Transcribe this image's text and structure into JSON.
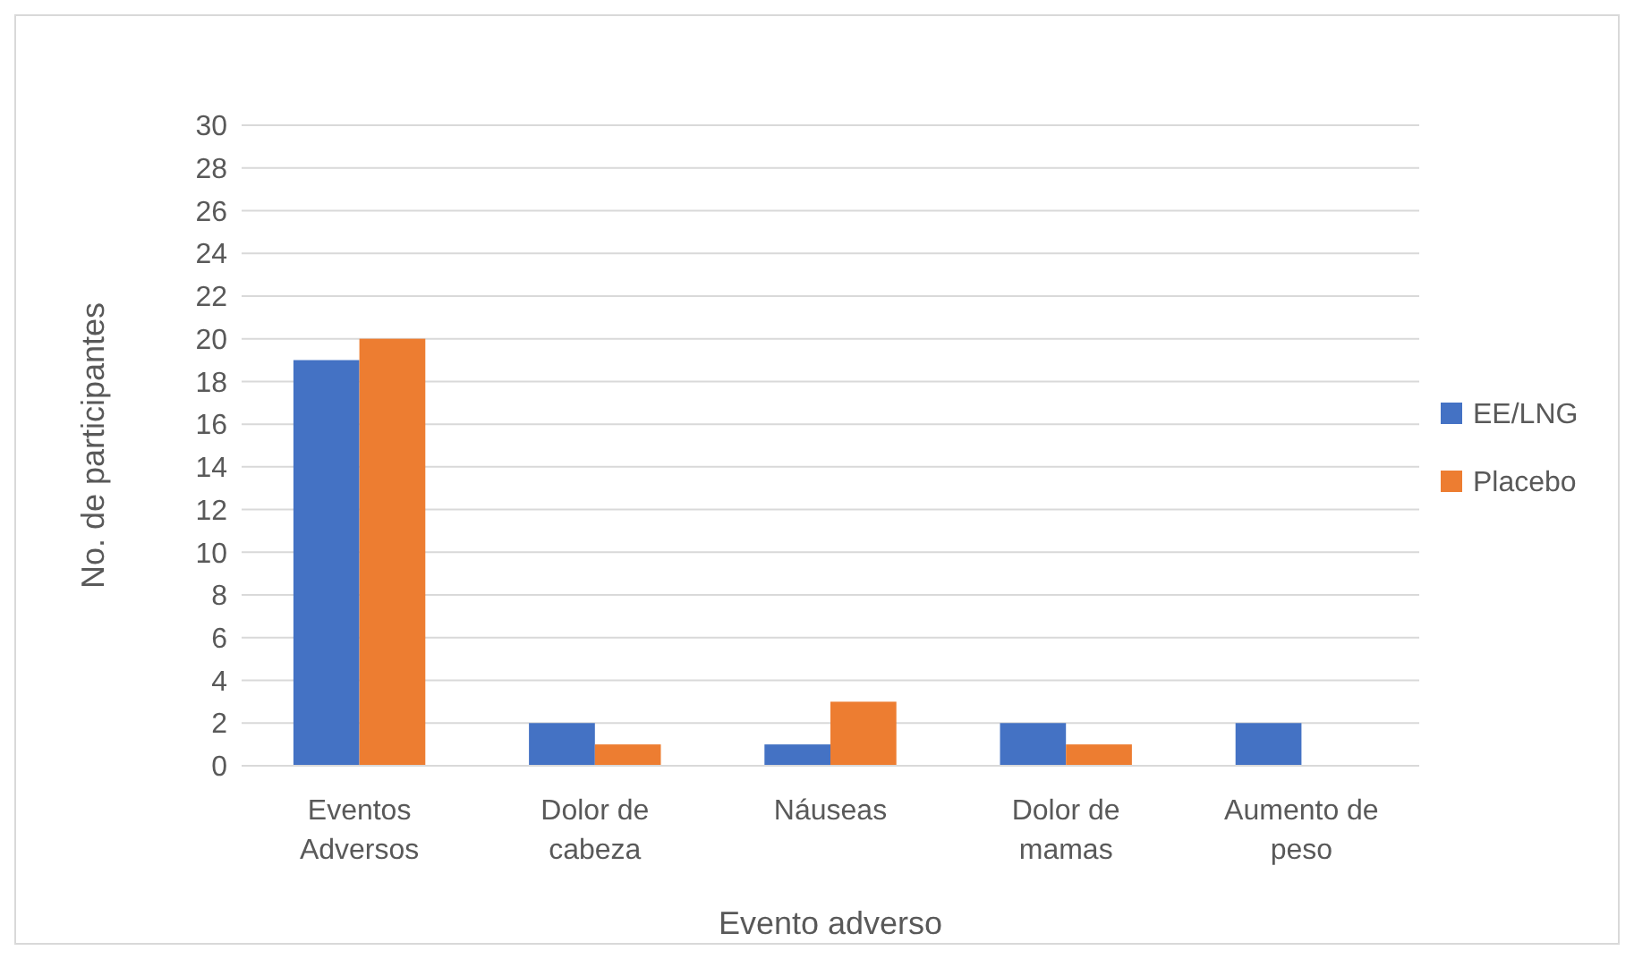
{
  "chart_data": {
    "type": "bar",
    "xlabel": "Evento adverso",
    "ylabel": "No. de participantes",
    "categories": [
      "Eventos Adversos",
      "Dolor de cabeza",
      "Náuseas",
      "Dolor de mamas",
      "Aumento de peso"
    ],
    "series": [
      {
        "name": "EE/LNG",
        "color": "#4472c4",
        "values": [
          19,
          2,
          1,
          2,
          2
        ]
      },
      {
        "name": "Placebo",
        "color": "#ed7d31",
        "values": [
          20,
          1,
          3,
          1,
          0
        ]
      }
    ],
    "ylim": [
      0,
      30
    ],
    "yticks": [
      0,
      2,
      4,
      6,
      8,
      10,
      12,
      14,
      16,
      18,
      20,
      22,
      24,
      26,
      28,
      30
    ],
    "grid": "y",
    "legend": "right"
  }
}
